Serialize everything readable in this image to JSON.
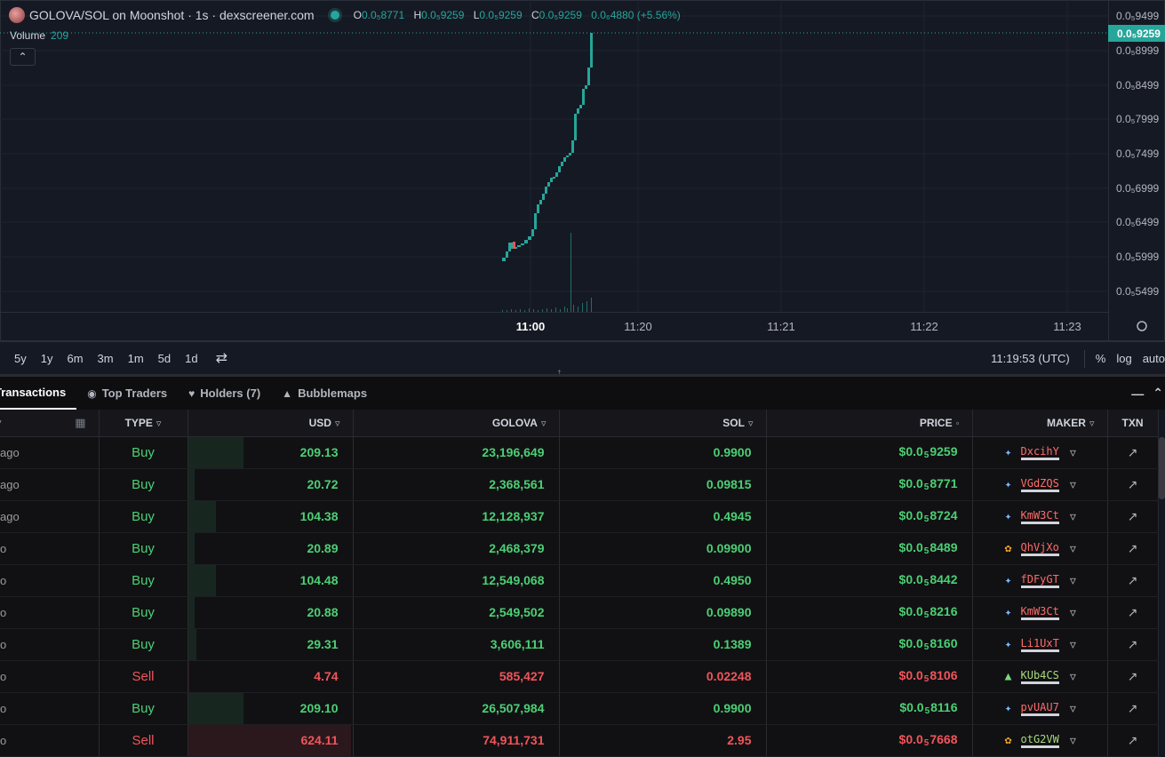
{
  "chart": {
    "pair_title": "GOLOVA/SOL on Moonshot · 1s · dexscreener.com",
    "ohlc": {
      "o_label": "O",
      "o_value": "0.0₅8771",
      "h_label": "H",
      "h_value": "0.0₅9259",
      "l_label": "L",
      "l_value": "0.0₅9259",
      "c_label": "C",
      "c_value": "0.0₅9259",
      "change": "0.0₆4880 (+5.56%)"
    },
    "volume_label": "Volume",
    "volume_value": "209",
    "current_price_tag": "0.0₅9259",
    "price_ticks": [
      "0.0₅9499",
      "0.0₅8999",
      "0.0₅8499",
      "0.0₅7999",
      "0.0₅7499",
      "0.0₅6999",
      "0.0₅6499",
      "0.0₅5999",
      "0.0₅5499"
    ],
    "time_ticks": [
      "11:00",
      "11:20",
      "11:21",
      "11:22",
      "11:23"
    ],
    "timeframes": [
      "5y",
      "1y",
      "6m",
      "3m",
      "1m",
      "5d",
      "1d"
    ],
    "clock": "11:19:53 (UTC)",
    "pct_label": "%",
    "log_label": "log",
    "auto_label": "auto",
    "colors": {
      "up": "#26a69a",
      "down": "#ef5350"
    }
  },
  "tabs": [
    {
      "label": "Transactions",
      "icon": ""
    },
    {
      "label": "Top Traders",
      "icon": "trophy-icon"
    },
    {
      "label": "Holders (7)",
      "icon": "heart-icon"
    },
    {
      "label": "Bubblemaps",
      "icon": "bubblemaps-icon"
    }
  ],
  "table": {
    "headers": {
      "date": "",
      "type": "TYPE",
      "usd": "USD",
      "golova": "GOLOVA",
      "sol": "SOL",
      "price": "PRICE",
      "maker": "MAKER",
      "txn": "TXN"
    },
    "rows": [
      {
        "age": "ago",
        "type": "Buy",
        "usd": "209.13",
        "usd_frac": 0.34,
        "golova": "23,196,649",
        "sol": "0.9900",
        "price_a": "$0.0",
        "price_sub": "5",
        "price_b": "9259",
        "maker": "DxcihY",
        "maker_icon": "moonshot-icon"
      },
      {
        "age": "ago",
        "type": "Buy",
        "usd": "20.72",
        "usd_frac": 0.04,
        "golova": "2,368,561",
        "sol": "0.09815",
        "price_a": "$0.0",
        "price_sub": "5",
        "price_b": "8771",
        "maker": "VGdZQS",
        "maker_icon": "moonshot-icon"
      },
      {
        "age": "ago",
        "type": "Buy",
        "usd": "104.38",
        "usd_frac": 0.17,
        "golova": "12,128,937",
        "sol": "0.4945",
        "price_a": "$0.0",
        "price_sub": "5",
        "price_b": "8724",
        "maker": "KmW3Ct",
        "maker_icon": "moonshot-icon"
      },
      {
        "age": "o",
        "type": "Buy",
        "usd": "20.89",
        "usd_frac": 0.04,
        "golova": "2,468,379",
        "sol": "0.09900",
        "price_a": "$0.0",
        "price_sub": "5",
        "price_b": "8489",
        "maker": "QhVjXo",
        "maker_icon": "fox-icon"
      },
      {
        "age": "o",
        "type": "Buy",
        "usd": "104.48",
        "usd_frac": 0.17,
        "golova": "12,549,068",
        "sol": "0.4950",
        "price_a": "$0.0",
        "price_sub": "5",
        "price_b": "8442",
        "maker": "fDFyGT",
        "maker_icon": "moonshot-icon"
      },
      {
        "age": "o",
        "type": "Buy",
        "usd": "20.88",
        "usd_frac": 0.04,
        "golova": "2,549,502",
        "sol": "0.09890",
        "price_a": "$0.0",
        "price_sub": "5",
        "price_b": "8216",
        "maker": "KmW3Ct",
        "maker_icon": "moonshot-icon"
      },
      {
        "age": "o",
        "type": "Buy",
        "usd": "29.31",
        "usd_frac": 0.05,
        "golova": "3,606,111",
        "sol": "0.1389",
        "price_a": "$0.0",
        "price_sub": "5",
        "price_b": "8160",
        "maker": "Li1UxT",
        "maker_icon": "moonshot-icon"
      },
      {
        "age": "o",
        "type": "Sell",
        "usd": "4.74",
        "usd_frac": 0.01,
        "golova": "585,427",
        "sol": "0.02248",
        "price_a": "$0.0",
        "price_sub": "5",
        "price_b": "8106",
        "maker": "KUb4CS",
        "maker_icon": "bot-icon"
      },
      {
        "age": "o",
        "type": "Buy",
        "usd": "209.10",
        "usd_frac": 0.34,
        "golova": "26,507,984",
        "sol": "0.9900",
        "price_a": "$0.0",
        "price_sub": "5",
        "price_b": "8116",
        "maker": "pvUAU7",
        "maker_icon": "moonshot-icon"
      },
      {
        "age": "o",
        "type": "Sell",
        "usd": "624.11",
        "usd_frac": 0.99,
        "golova": "74,911,731",
        "sol": "2.95",
        "price_a": "$0.0",
        "price_sub": "5",
        "price_b": "7668",
        "maker": "otG2VW",
        "maker_icon": "fox-icon"
      }
    ]
  }
}
